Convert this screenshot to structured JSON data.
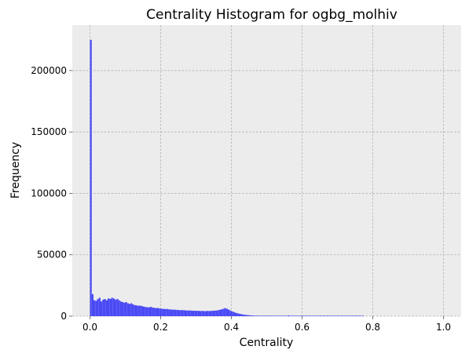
{
  "chart_data": {
    "type": "bar",
    "title": "Centrality Histogram for ogbg_molhiv",
    "xlabel": "Centrality",
    "ylabel": "Frequency",
    "xlim": [
      -0.05,
      1.05
    ],
    "ylim": [
      0,
      237000
    ],
    "grid": true,
    "bins": 200,
    "bin_range": [
      0,
      1
    ],
    "x_ticks": [
      0.0,
      0.2,
      0.4,
      0.6,
      0.8,
      1.0
    ],
    "x_tick_labels": [
      "0.0",
      "0.2",
      "0.4",
      "0.6",
      "0.8",
      "1.0"
    ],
    "y_ticks": [
      0,
      50000,
      100000,
      150000,
      200000
    ],
    "y_tick_labels": [
      "0",
      "50000",
      "100000",
      "150000",
      "200000"
    ],
    "bar_color": "#4a4af5",
    "background_color": "#ececec",
    "values": [
      225000,
      18000,
      13000,
      12500,
      14000,
      15000,
      12000,
      13500,
      14000,
      13000,
      14500,
      14000,
      15000,
      14500,
      13500,
      14000,
      13000,
      12000,
      11500,
      11000,
      11500,
      10500,
      10000,
      10500,
      9500,
      9000,
      8800,
      8500,
      8600,
      8200,
      7800,
      7500,
      7300,
      7200,
      7600,
      7000,
      6800,
      6600,
      6700,
      6300,
      6100,
      6000,
      5800,
      5900,
      5600,
      5500,
      5300,
      5400,
      5200,
      5100,
      5000,
      4900,
      5000,
      4800,
      4700,
      4600,
      4700,
      4500,
      4400,
      4500,
      4300,
      4400,
      4200,
      4300,
      4200,
      4100,
      4300,
      4200,
      4300,
      4400,
      4500,
      4600,
      4900,
      5200,
      5600,
      6000,
      6600,
      6000,
      5400,
      4600,
      3900,
      3400,
      2800,
      2400,
      2000,
      1700,
      1400,
      1200,
      1000,
      850,
      700,
      600,
      520,
      450,
      400,
      360,
      330,
      300,
      280,
      260,
      240,
      220,
      200,
      180,
      160,
      140,
      120,
      110,
      100,
      90,
      80,
      70,
      600,
      60,
      50,
      45,
      40,
      35,
      30,
      30,
      25,
      25,
      20,
      20,
      15,
      15,
      15,
      10,
      10,
      10,
      10,
      8,
      8,
      6,
      6,
      5,
      5,
      4,
      4,
      3,
      3,
      3,
      2,
      2,
      2,
      2,
      1,
      1,
      1,
      1,
      1,
      1,
      1,
      1,
      1,
      0,
      0,
      0,
      0,
      0,
      0,
      0,
      0,
      0,
      0,
      0,
      0,
      0,
      0,
      0,
      0,
      0,
      0,
      0,
      0,
      0,
      0,
      0,
      0,
      0,
      0,
      0,
      0,
      0,
      0,
      0,
      0,
      0,
      0,
      0,
      0,
      0,
      0,
      0,
      0,
      0,
      0,
      0,
      0,
      0
    ]
  }
}
